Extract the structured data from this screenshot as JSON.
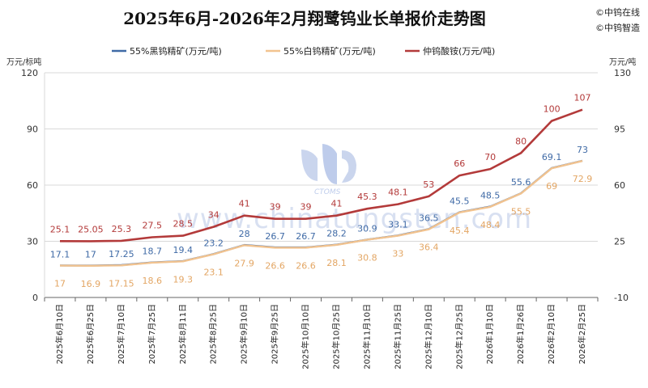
{
  "brand": {
    "line1": "©中钨在线",
    "line2": "©中钨智造",
    "watermark": "www.chinatungsten.com",
    "logo_text": "CTOMS"
  },
  "chart_data": {
    "type": "line",
    "title": "2025年6月-2026年2月翔鹭钨业长单报价走势图",
    "left_axis": {
      "unit": "万元/标吨",
      "ylim": [
        0,
        120
      ],
      "ticks": [
        0,
        30,
        60,
        90,
        120
      ]
    },
    "right_axis": {
      "unit": "万元/吨",
      "ylim": [
        -10,
        130
      ],
      "ticks": [
        -10,
        25,
        60,
        95,
        130
      ]
    },
    "categories": [
      "2025年6月10日",
      "2025年6月25日",
      "2025年7月10日",
      "2025年7月25日",
      "2025年8月11日",
      "2025年8月25日",
      "2025年9月10日",
      "2025年9月25日",
      "2025年10月10日",
      "2025年10月25日",
      "2025年11月10日",
      "2025年11月25日",
      "2025年12月10日",
      "2025年12月25日",
      "2026年1月10日",
      "2026年1月26日",
      "2026年2月10日",
      "2026年2月25日"
    ],
    "legend_position": "top",
    "grid": "horizontal",
    "series": [
      {
        "name": "55%黑钨精矿(万元/吨)",
        "axis": "left",
        "color": "#3f6aa6",
        "values": [
          17.1,
          17,
          17.25,
          18.7,
          19.4,
          23.2,
          28,
          26.7,
          26.7,
          28.2,
          30.9,
          33.1,
          36.5,
          45.5,
          48.5,
          55.6,
          69.1,
          73
        ],
        "labels": [
          "17.1",
          "17",
          "17.25",
          "18.7",
          "19.4",
          "23.2",
          "28",
          "26.7",
          "26.7",
          "28.2",
          "30.9",
          "33.1",
          "36.5",
          "45.5",
          "48.5",
          "55.6",
          "69.1",
          "73"
        ]
      },
      {
        "name": "55%白钨精矿(万元/吨)",
        "axis": "left",
        "color": "#f2c38f",
        "values": [
          17,
          16.9,
          17.15,
          18.6,
          19.3,
          23.1,
          27.9,
          26.6,
          26.6,
          28.1,
          30.8,
          33,
          36.4,
          45.4,
          48.4,
          55.5,
          69,
          72.9
        ],
        "labels": [
          "17",
          "16.9",
          "17.15",
          "18.6",
          "19.3",
          "23.1",
          "27.9",
          "26.6",
          "26.6",
          "28.1",
          "30.8",
          "33",
          "36.4",
          "45.4",
          "48.4",
          "55.5",
          "69",
          "72.9"
        ]
      },
      {
        "name": "仲钨酸铵(万元/吨)",
        "axis": "right",
        "color": "#b33a3a",
        "values": [
          25.1,
          25.05,
          25.3,
          27.5,
          28.5,
          34,
          41,
          39,
          39,
          41,
          45.3,
          48.1,
          53,
          66,
          70,
          80,
          100,
          107
        ],
        "labels": [
          "25.1",
          "25.05",
          "25.3",
          "27.5",
          "28.5",
          "34",
          "41",
          "39",
          "39",
          "41",
          "45.3",
          "48.1",
          "53",
          "66",
          "70",
          "80",
          "100",
          "107"
        ]
      }
    ]
  }
}
